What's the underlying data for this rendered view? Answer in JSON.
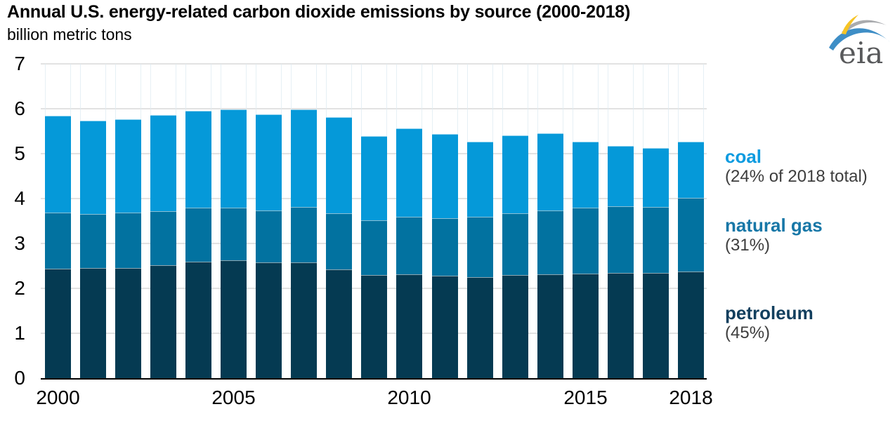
{
  "header": {
    "title": "Annual U.S. energy-related carbon dioxide emissions by source (2000-2018)",
    "subtitle": "billion metric tons",
    "logo": {
      "text": "eia",
      "text_color": "#58595b",
      "arc_blue": "#3e8ec6",
      "arc_gray": "#a9abae",
      "arc_yellow": "#f6c425"
    }
  },
  "chart_data": {
    "type": "bar",
    "stacked": true,
    "title": "Annual U.S. energy-related carbon dioxide emissions by source (2000-2018)",
    "ylabel": "billion metric tons",
    "xlabel": "",
    "ylim": [
      0,
      7
    ],
    "y_ticks": [
      0,
      1,
      2,
      3,
      4,
      5,
      6,
      7
    ],
    "grid": "horizontal",
    "legend_position": "right-annotations",
    "categories": [
      2000,
      2001,
      2002,
      2003,
      2004,
      2005,
      2006,
      2007,
      2008,
      2009,
      2010,
      2011,
      2012,
      2013,
      2014,
      2015,
      2016,
      2017,
      2018
    ],
    "x_ticks": [
      {
        "index": 0,
        "label": "2000"
      },
      {
        "index": 5,
        "label": "2005"
      },
      {
        "index": 10,
        "label": "2010"
      },
      {
        "index": 15,
        "label": "2015"
      },
      {
        "index": 18,
        "label": "2018"
      }
    ],
    "series": [
      {
        "name": "petroleum",
        "color": "#053a52",
        "values": [
          2.44,
          2.46,
          2.45,
          2.52,
          2.6,
          2.62,
          2.58,
          2.58,
          2.42,
          2.29,
          2.32,
          2.28,
          2.25,
          2.29,
          2.32,
          2.33,
          2.35,
          2.34,
          2.38
        ]
      },
      {
        "name": "natural gas",
        "color": "#0272a0",
        "values": [
          1.24,
          1.19,
          1.23,
          1.2,
          1.19,
          1.18,
          1.16,
          1.24,
          1.25,
          1.22,
          1.27,
          1.29,
          1.35,
          1.39,
          1.42,
          1.46,
          1.48,
          1.47,
          1.63
        ]
      },
      {
        "name": "coal",
        "color": "#0599d9",
        "values": [
          2.16,
          2.09,
          2.09,
          2.14,
          2.16,
          2.18,
          2.13,
          2.17,
          2.14,
          1.88,
          1.98,
          1.87,
          1.66,
          1.72,
          1.71,
          1.48,
          1.35,
          1.32,
          1.26
        ]
      }
    ]
  },
  "annotations": [
    {
      "id": "coal",
      "label": "coal",
      "detail": "(24% of 2018 total)",
      "color": "#0d9be0"
    },
    {
      "id": "natural-gas",
      "label": "natural gas",
      "detail": "(31%)",
      "color": "#1777a7"
    },
    {
      "id": "petroleum",
      "label": "petroleum",
      "detail": "(45%)",
      "color": "#123f5e"
    }
  ]
}
